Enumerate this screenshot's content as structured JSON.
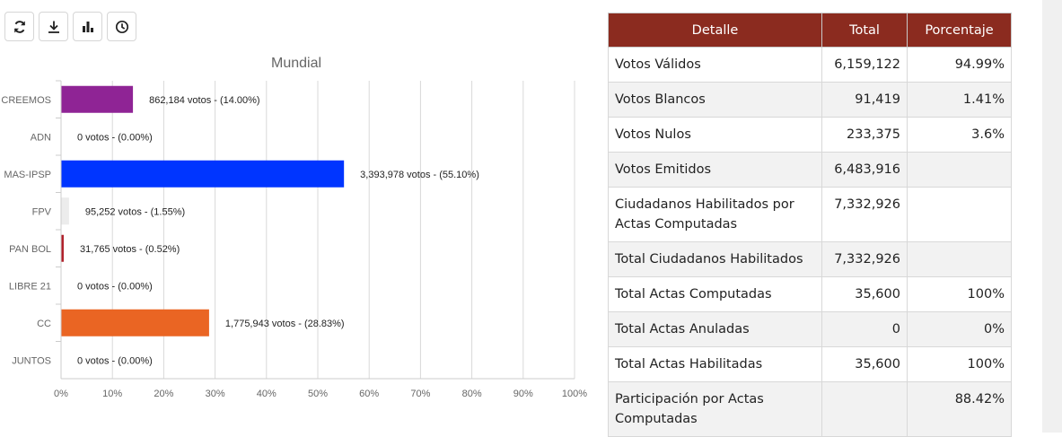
{
  "toolbar": {
    "buttons": [
      {
        "name": "refresh-icon"
      },
      {
        "name": "download-icon"
      },
      {
        "name": "bar-chart-icon"
      },
      {
        "name": "clock-icon"
      }
    ]
  },
  "chart_data": {
    "type": "bar",
    "orientation": "horizontal",
    "title": "Mundial",
    "xlim": [
      0,
      100
    ],
    "xticks": [
      "0%",
      "10%",
      "20%",
      "30%",
      "40%",
      "50%",
      "60%",
      "70%",
      "80%",
      "90%",
      "100%"
    ],
    "grid": true,
    "categories": [
      "CREEMOS",
      "ADN",
      "MAS-IPSP",
      "FPV",
      "PAN BOL",
      "LIBRE 21",
      "CC",
      "JUNTOS"
    ],
    "values": [
      14.0,
      0.0,
      55.1,
      1.55,
      0.52,
      0.0,
      28.83,
      0.0
    ],
    "labels": [
      "862,184 votos - (14.00%)",
      "0 votos - (0.00%)",
      "3,393,978 votos - (55.10%)",
      "95,252 votos - (1.55%)",
      "31,765 votos - (0.52%)",
      "0 votos - (0.00%)",
      "1,775,943 votos - (28.83%)",
      "0 votos - (0.00%)"
    ],
    "colors": [
      "#8f2495",
      "#cccccc",
      "#0035ff",
      "#ececec",
      "#b0202a",
      "#cccccc",
      "#ea6523",
      "#cccccc"
    ]
  },
  "table": {
    "headers": [
      "Detalle",
      "Total",
      "Porcentaje"
    ],
    "rows": [
      {
        "detalle": "Votos Válidos",
        "total": "6,159,122",
        "porcentaje": "94.99%"
      },
      {
        "detalle": "Votos Blancos",
        "total": "91,419",
        "porcentaje": "1.41%"
      },
      {
        "detalle": "Votos Nulos",
        "total": "233,375",
        "porcentaje": "3.6%"
      },
      {
        "detalle": "Votos Emitidos",
        "total": "6,483,916",
        "porcentaje": ""
      },
      {
        "detalle": "Ciudadanos Habilitados por Actas Computadas",
        "total": "7,332,926",
        "porcentaje": ""
      },
      {
        "detalle": "Total Ciudadanos Habilitados",
        "total": "7,332,926",
        "porcentaje": ""
      },
      {
        "detalle": "Total Actas Computadas",
        "total": "35,600",
        "porcentaje": "100%"
      },
      {
        "detalle": "Total Actas Anuladas",
        "total": "0",
        "porcentaje": "0%"
      },
      {
        "detalle": "Total Actas Habilitadas",
        "total": "35,600",
        "porcentaje": "100%"
      },
      {
        "detalle": "Participación por Actas Computadas",
        "total": "",
        "porcentaje": "88.42%"
      }
    ]
  },
  "colors": {
    "header_bg": "#8b2b1f",
    "row_alt": "#f2f2f2"
  }
}
